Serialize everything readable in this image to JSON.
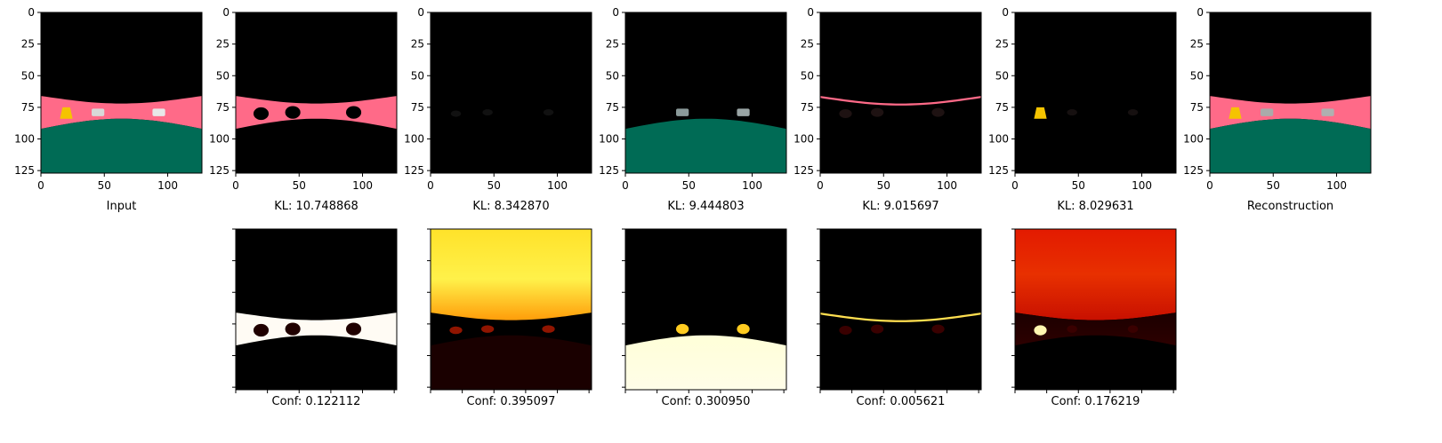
{
  "chart_data": {
    "type": "image_grid",
    "axes": {
      "ylim": [
        0,
        127
      ],
      "xlim": [
        0,
        127
      ],
      "yticks": [
        "0",
        "25",
        "50",
        "75",
        "100",
        "125"
      ],
      "xticks": [
        "0",
        "50",
        "100"
      ]
    },
    "top_row": [
      {
        "label": "Input",
        "kind": "input"
      },
      {
        "label": "KL: 10.748868",
        "kind": "mask_background"
      },
      {
        "label": "KL: 8.342870",
        "kind": "empty"
      },
      {
        "label": "KL: 9.444803",
        "kind": "cars_ground"
      },
      {
        "label": "KL: 9.015697",
        "kind": "line"
      },
      {
        "label": "KL: 8.029631",
        "kind": "yellow_object"
      },
      {
        "label": "Reconstruction",
        "kind": "reconstruction"
      }
    ],
    "bottom_row": [
      {
        "label": "Conf: 0.122112",
        "kind": "conf_band"
      },
      {
        "label": "Conf: 0.395097",
        "kind": "conf_sky"
      },
      {
        "label": "Conf: 0.300950",
        "kind": "conf_ground"
      },
      {
        "label": "Conf: 0.005621",
        "kind": "conf_line"
      },
      {
        "label": "Conf: 0.176219",
        "kind": "conf_red"
      }
    ],
    "colors": {
      "road": "#ff6a88",
      "ground": "#006b55",
      "yellow": "#f5c400",
      "black": "#000000"
    }
  }
}
